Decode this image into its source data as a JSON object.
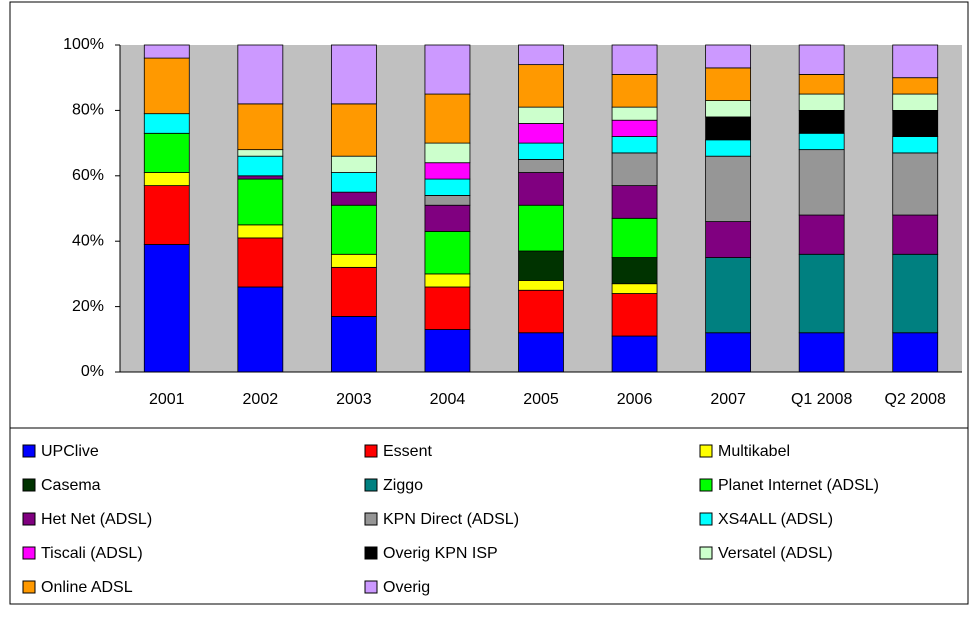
{
  "chart_data": {
    "type": "stacked-bar",
    "categories": [
      "2001",
      "2002",
      "2003",
      "2004",
      "2005",
      "2006",
      "2007",
      "Q1 2008",
      "Q2 2008"
    ],
    "series": [
      {
        "name": "UPClive",
        "color": "#0000ff",
        "values": [
          39,
          26,
          17,
          13,
          12,
          11,
          12,
          12,
          12
        ]
      },
      {
        "name": "Essent",
        "color": "#ff0000",
        "values": [
          18,
          15,
          15,
          13,
          13,
          13,
          0,
          0,
          0
        ]
      },
      {
        "name": "Multikabel",
        "color": "#ffff00",
        "values": [
          4,
          4,
          4,
          4,
          3,
          3,
          0,
          0,
          0
        ]
      },
      {
        "name": "Casema",
        "color": "#003300",
        "values": [
          0,
          0,
          0,
          0,
          9,
          8,
          0,
          0,
          0
        ]
      },
      {
        "name": "Ziggo",
        "color": "#008080",
        "values": [
          0,
          0,
          0,
          0,
          0,
          0,
          23,
          24,
          24
        ]
      },
      {
        "name": "Planet Internet (ADSL)",
        "color": "#00ff00",
        "values": [
          12,
          14,
          15,
          13,
          14,
          12,
          0,
          0,
          0
        ]
      },
      {
        "name": "Het Net (ADSL)",
        "color": "#800080",
        "values": [
          0,
          1,
          4,
          8,
          10,
          10,
          11,
          12,
          12
        ]
      },
      {
        "name": "KPN Direct (ADSL)",
        "color": "#969696",
        "values": [
          0,
          0,
          0,
          3,
          4,
          10,
          20,
          20,
          19
        ]
      },
      {
        "name": "XS4ALL (ADSL)",
        "color": "#00ffff",
        "values": [
          6,
          6,
          6,
          5,
          5,
          5,
          5,
          5,
          5
        ]
      },
      {
        "name": "Tiscali (ADSL)",
        "color": "#ff00ff",
        "values": [
          0,
          0,
          0,
          5,
          6,
          5,
          0,
          0,
          0
        ]
      },
      {
        "name": "Overig KPN ISP",
        "color": "#000000",
        "values": [
          0,
          0,
          0,
          0,
          0,
          0,
          7,
          7,
          8
        ]
      },
      {
        "name": "Versatel (ADSL)",
        "color": "#ccffcc",
        "values": [
          0,
          2,
          5,
          6,
          5,
          4,
          5,
          5,
          5
        ]
      },
      {
        "name": "Online ADSL",
        "color": "#ff9900",
        "values": [
          17,
          14,
          16,
          15,
          13,
          10,
          10,
          6,
          5
        ]
      },
      {
        "name": "Overig",
        "color": "#cc99ff",
        "values": [
          4,
          18,
          18,
          15,
          6,
          9,
          7,
          9,
          10
        ]
      }
    ],
    "ylim": [
      0,
      100
    ],
    "yticks": [
      {
        "value": 0,
        "label": "0%"
      },
      {
        "value": 20,
        "label": "20%"
      },
      {
        "value": 40,
        "label": "40%"
      },
      {
        "value": 60,
        "label": "60%"
      },
      {
        "value": 80,
        "label": "80%"
      },
      {
        "value": 100,
        "label": "100%"
      }
    ],
    "grid": false,
    "plot_background": "#c0c0c0",
    "legend": "bottom"
  }
}
